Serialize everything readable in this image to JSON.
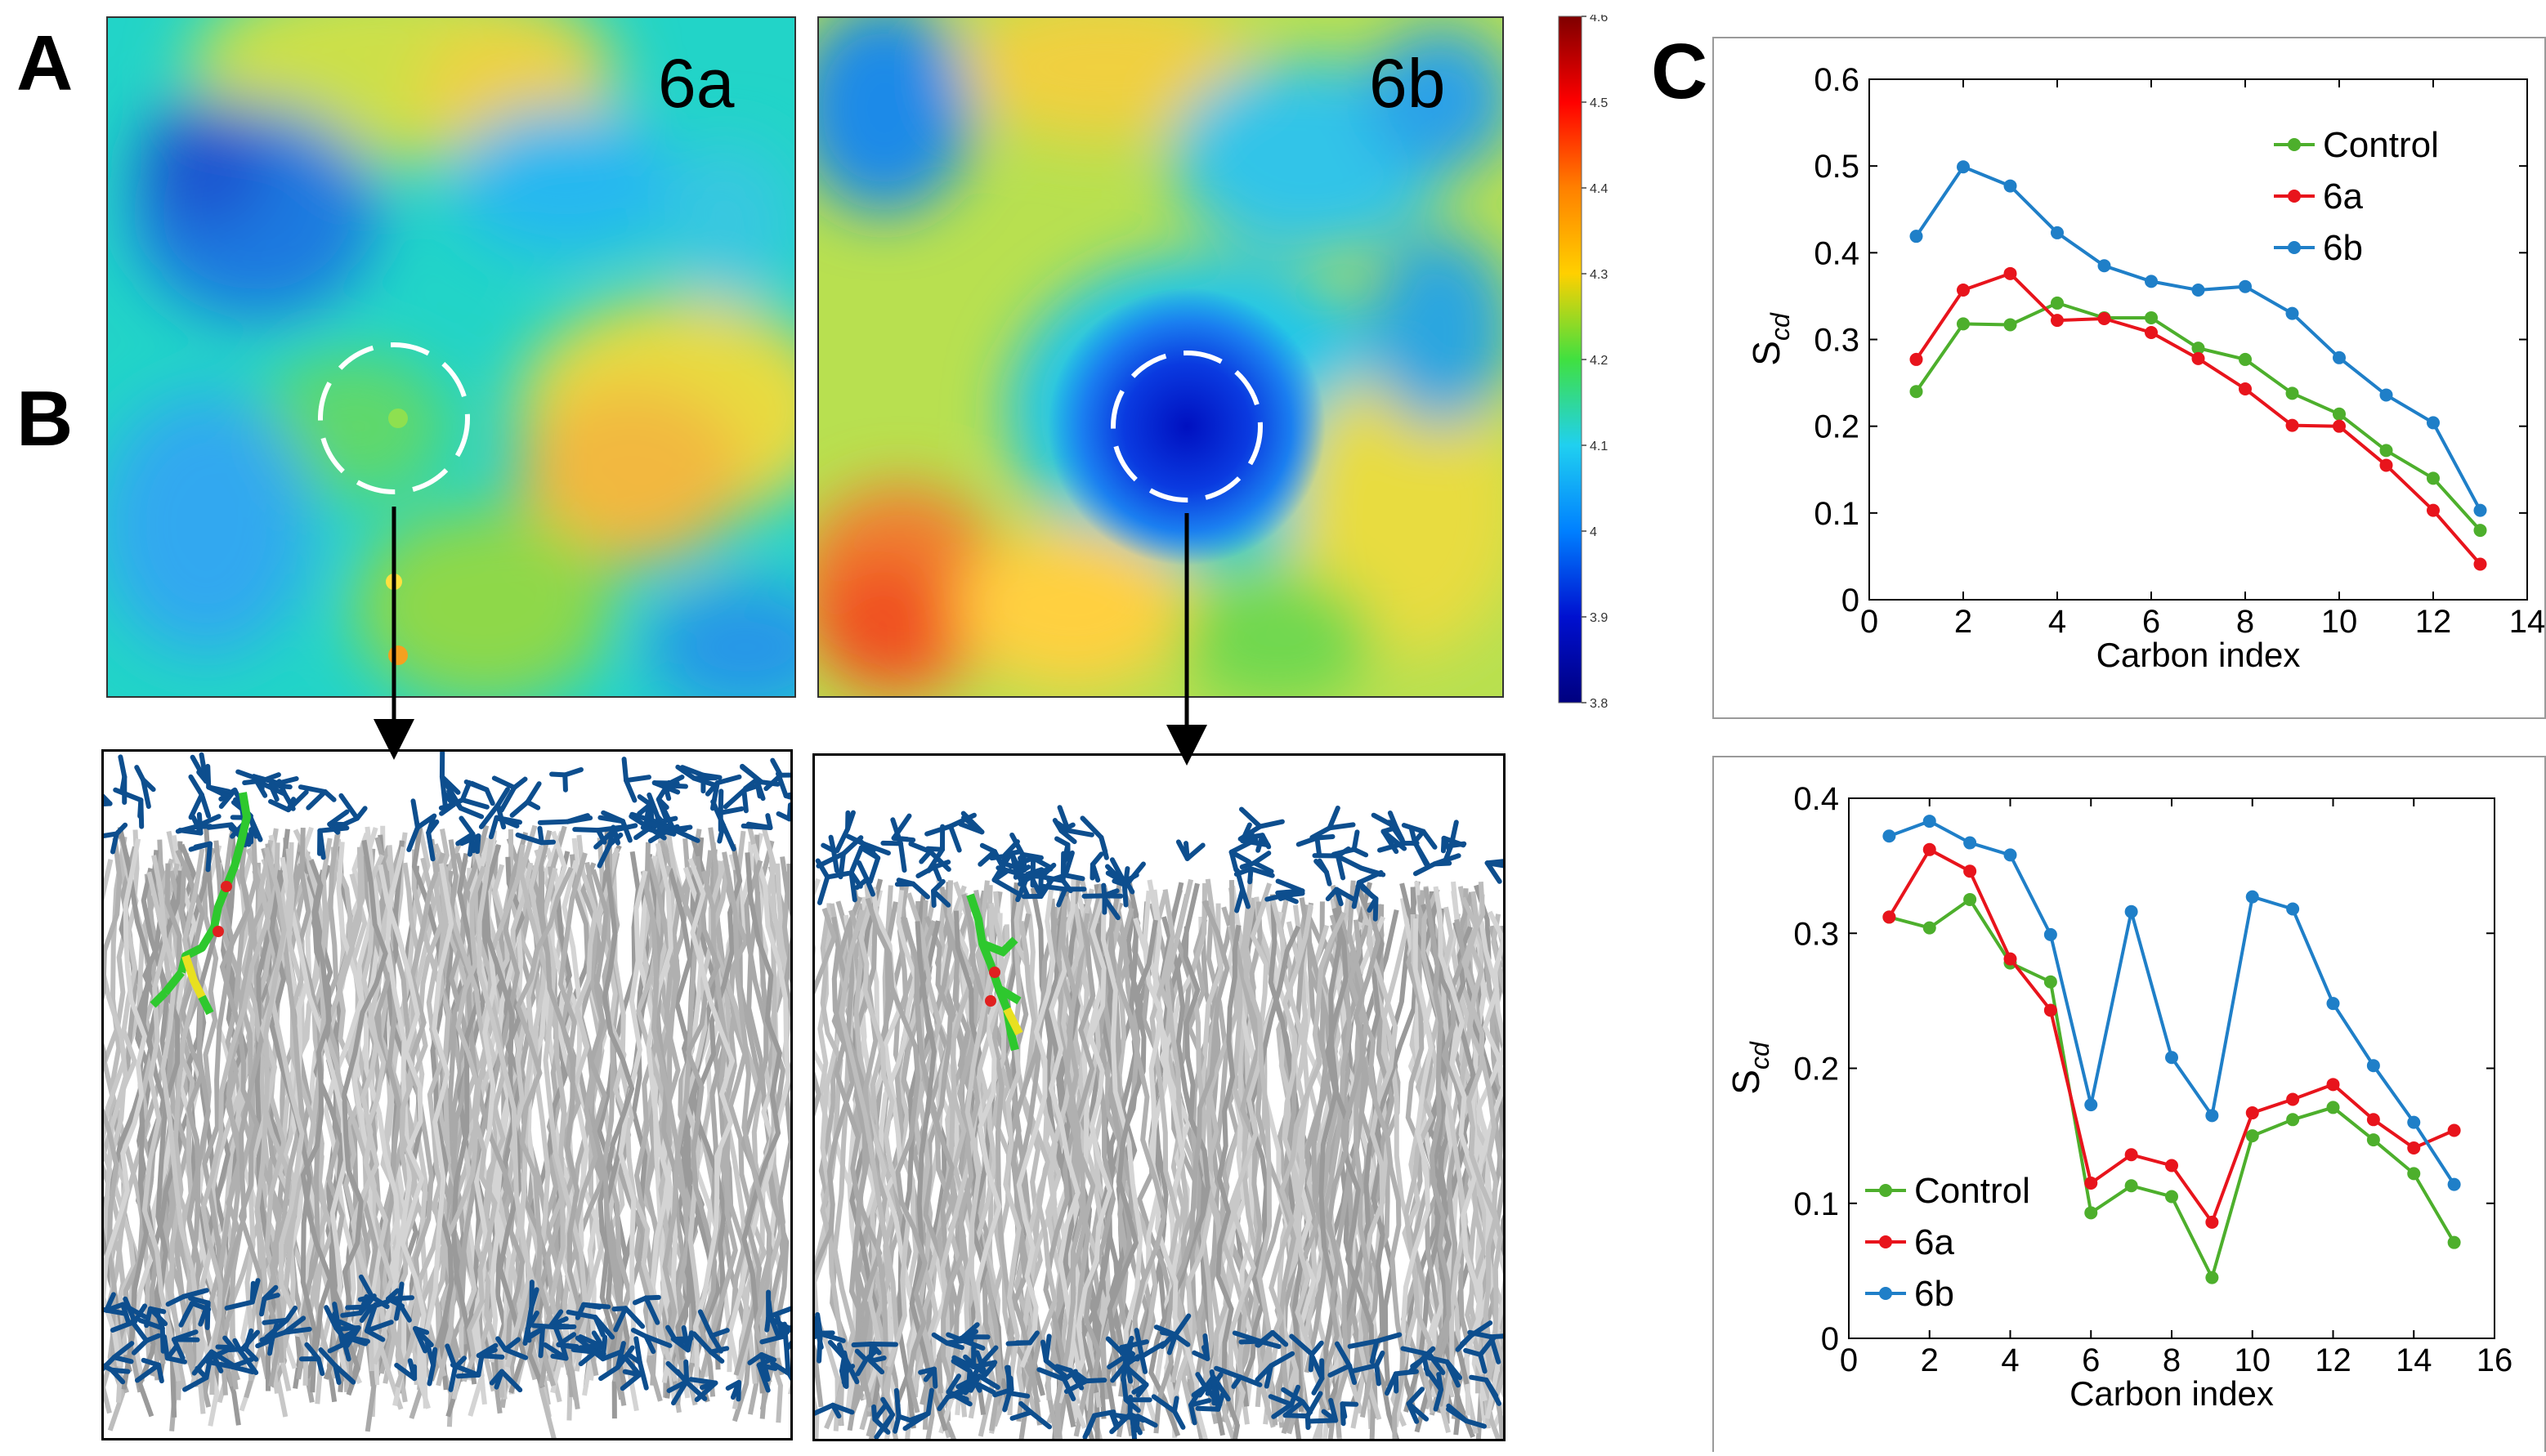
{
  "panel_letters": {
    "a": "A",
    "b": "B",
    "c": "C"
  },
  "heatmaps": [
    {
      "label": "6a"
    },
    {
      "label": "6b"
    }
  ],
  "colorbar": {
    "ticks": [
      "4.6",
      "4.5",
      "4.4",
      "4.3",
      "4.2",
      "4.1",
      "4",
      "3.9",
      "3.8"
    ],
    "colors": [
      "#7f0000",
      "#ff0000",
      "#ff8000",
      "#ffd000",
      "#40e040",
      "#20d0f0",
      "#0080ff",
      "#0010d0",
      "#00007f"
    ]
  },
  "chart_data": [
    {
      "type": "line",
      "xlabel": "Carbon index",
      "ylabel": "S",
      "ylabel_sub": "cd",
      "xlim": [
        0,
        14
      ],
      "ylim": [
        0,
        0.6
      ],
      "xticks": [
        "0",
        "2",
        "4",
        "6",
        "8",
        "10",
        "12",
        "14"
      ],
      "yticks": [
        "0",
        "0.1",
        "0.2",
        "0.3",
        "0.4",
        "0.5",
        "0.6"
      ],
      "legend_position": "top-right",
      "x": [
        1,
        2,
        3,
        4,
        5,
        6,
        7,
        8,
        9,
        10,
        11,
        12,
        13
      ],
      "series": [
        {
          "name": "Control",
          "color": "#4daf2c",
          "values": [
            0.24,
            0.318,
            0.317,
            0.342,
            0.325,
            0.325,
            0.29,
            0.277,
            0.238,
            0.214,
            0.172,
            0.14,
            0.08
          ]
        },
        {
          "name": "6a",
          "color": "#e8141c",
          "values": [
            0.277,
            0.357,
            0.376,
            0.322,
            0.324,
            0.308,
            0.278,
            0.243,
            0.201,
            0.2,
            0.155,
            0.103,
            0.041
          ]
        },
        {
          "name": "6b",
          "color": "#1f7fc8",
          "values": [
            0.419,
            0.499,
            0.477,
            0.423,
            0.385,
            0.367,
            0.357,
            0.361,
            0.33,
            0.279,
            0.236,
            0.204,
            0.103
          ]
        }
      ]
    },
    {
      "type": "line",
      "xlabel": "Carbon index",
      "ylabel": "S",
      "ylabel_sub": "cd",
      "xlim": [
        0,
        16
      ],
      "ylim": [
        0,
        0.4
      ],
      "xticks": [
        "0",
        "2",
        "4",
        "6",
        "8",
        "10",
        "12",
        "14",
        "16"
      ],
      "yticks": [
        "0",
        "0.1",
        "0.2",
        "0.3",
        "0.4"
      ],
      "legend_position": "bottom-left",
      "x": [
        1,
        2,
        3,
        4,
        5,
        6,
        7,
        8,
        9,
        10,
        11,
        12,
        13,
        14,
        15
      ],
      "series": [
        {
          "name": "Control",
          "color": "#4daf2c",
          "values": [
            0.312,
            0.304,
            0.325,
            0.278,
            0.264,
            0.093,
            0.113,
            0.105,
            0.045,
            0.15,
            0.162,
            0.171,
            0.147,
            0.122,
            0.071
          ]
        },
        {
          "name": "6a",
          "color": "#e8141c",
          "values": [
            0.312,
            0.362,
            0.346,
            0.281,
            0.243,
            0.115,
            0.136,
            0.128,
            0.086,
            0.167,
            0.177,
            0.188,
            0.162,
            0.141,
            0.154
          ]
        },
        {
          "name": "6b",
          "color": "#1f7fc8",
          "values": [
            0.372,
            0.383,
            0.367,
            0.358,
            0.299,
            0.173,
            0.316,
            0.208,
            0.165,
            0.327,
            0.318,
            0.248,
            0.202,
            0.16,
            0.114
          ]
        }
      ]
    }
  ]
}
